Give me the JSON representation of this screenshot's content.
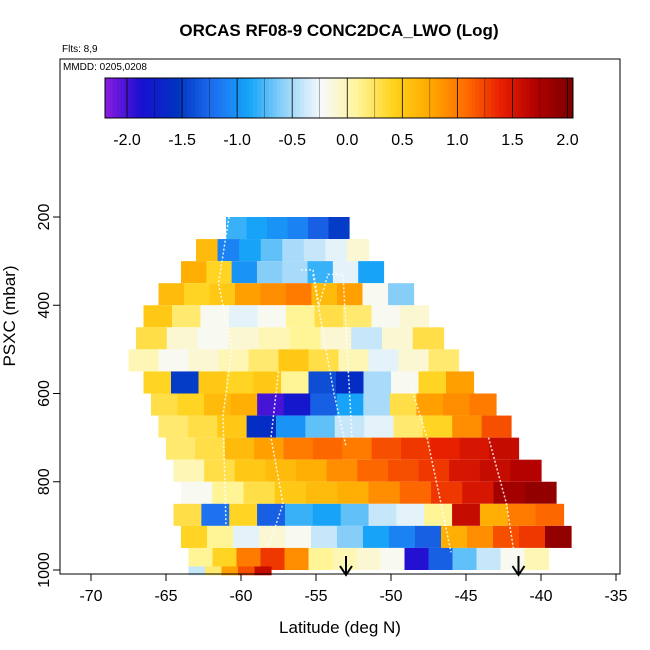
{
  "chart_data": {
    "type": "heatmap",
    "title": "ORCAS RF08-9 CONC2DCA_LWO (Log)",
    "flights_label": "Flts: 8,9",
    "date_label": "MMDD: 0205,0208",
    "xlabel": "Latitude (deg N)",
    "ylabel": "PSXC (mbar)",
    "xlim": [
      -72.5,
      -35
    ],
    "ylim": [
      1010,
      50
    ],
    "x_ticks": [
      -70,
      -65,
      -60,
      -55,
      -50,
      -45,
      -40,
      -35
    ],
    "y_ticks": [
      200,
      400,
      600,
      800,
      1000
    ],
    "colorbar": {
      "ticks": [
        -2.0,
        -1.5,
        -1.0,
        -0.5,
        0.0,
        0.5,
        1.0,
        1.5,
        2.0
      ],
      "tick_labels": [
        "-2.0",
        "-1.5",
        "-1.0",
        "-0.5",
        "0.0",
        "0.5",
        "1.0",
        "1.5",
        "2.0"
      ],
      "range": [
        -2.2,
        2.05
      ],
      "colors": [
        "#8b1ce0",
        "#1a0fd0",
        "#0033c0",
        "#1e6ff0",
        "#16a4f8",
        "#93d3f8",
        "#f7f9fb",
        "#fff59a",
        "#ffd21c",
        "#ffaa00",
        "#ff6e00",
        "#e82000",
        "#b00000",
        "#7a0000"
      ]
    },
    "rows": [
      {
        "p": 225,
        "lat_min": -61.0,
        "lat_max": -52.8,
        "values": [
          -0.8,
          -0.9,
          -1.0,
          -1.1,
          -1.3,
          -1.5
        ]
      },
      {
        "p": 275,
        "lat_min": -63.0,
        "lat_max": -51.5,
        "values": [
          0.6,
          -1.1,
          -0.9,
          -0.7,
          -0.5,
          -0.4,
          -0.3,
          -0.1
        ]
      },
      {
        "p": 325,
        "lat_min": -64.0,
        "lat_max": -50.5,
        "values": [
          0.7,
          0.4,
          -1.0,
          -0.6,
          -0.5,
          -0.8,
          -0.3,
          -0.9
        ]
      },
      {
        "p": 375,
        "lat_min": -65.5,
        "lat_max": -48.5,
        "values": [
          0.6,
          0.4,
          0.5,
          0.8,
          0.9,
          1.0,
          0.6,
          0.8,
          -0.2,
          -0.6
        ]
      },
      {
        "p": 425,
        "lat_min": -66.5,
        "lat_max": -47.5,
        "values": [
          0.5,
          0.2,
          -0.2,
          -0.3,
          -0.2,
          0.1,
          0.3,
          0.2,
          -0.2,
          -0.1
        ]
      },
      {
        "p": 475,
        "lat_min": -67.0,
        "lat_max": -46.5,
        "values": [
          0.3,
          -0.1,
          -0.2,
          -0.1,
          0.0,
          0.1,
          -0.1,
          -0.4,
          -0.1,
          0.3
        ]
      },
      {
        "p": 525,
        "lat_min": -67.5,
        "lat_max": -45.5,
        "values": [
          0.0,
          -0.2,
          -0.1,
          0.0,
          0.2,
          0.5,
          0.3,
          0.0,
          -0.3,
          -0.1,
          0.2
        ]
      },
      {
        "p": 575,
        "lat_min": -66.5,
        "lat_max": -44.5,
        "values": [
          0.4,
          -1.5,
          0.5,
          0.4,
          0.5,
          0.1,
          -1.4,
          -1.6,
          -0.5,
          -0.2,
          0.4,
          0.8
        ]
      },
      {
        "p": 625,
        "lat_min": -66.0,
        "lat_max": -43.0,
        "values": [
          0.3,
          0.4,
          0.6,
          0.7,
          -2.0,
          -1.8,
          -1.3,
          -0.9,
          -0.5,
          0.3,
          0.8,
          0.9,
          1.0
        ]
      },
      {
        "p": 675,
        "lat_min": -65.5,
        "lat_max": -42.0,
        "values": [
          0.2,
          0.3,
          0.5,
          -1.6,
          -1.0,
          -0.7,
          -0.4,
          -0.3,
          0.2,
          0.4,
          0.9,
          1.2
        ]
      },
      {
        "p": 725,
        "lat_min": -65.0,
        "lat_max": -41.5,
        "values": [
          0.2,
          0.3,
          0.6,
          0.8,
          1.0,
          1.1,
          1.0,
          1.2,
          1.3,
          1.4,
          1.5,
          1.6
        ]
      },
      {
        "p": 775,
        "lat_min": -64.5,
        "lat_max": -40.0,
        "values": [
          0.0,
          0.3,
          0.5,
          0.6,
          0.7,
          0.9,
          1.1,
          1.2,
          1.3,
          1.5,
          1.6,
          1.7
        ]
      },
      {
        "p": 825,
        "lat_min": -64.0,
        "lat_max": -39.0,
        "values": [
          -0.2,
          0.1,
          0.3,
          0.5,
          0.6,
          0.7,
          0.9,
          1.1,
          1.3,
          1.5,
          1.8,
          1.9
        ]
      },
      {
        "p": 875,
        "lat_min": -64.5,
        "lat_max": -38.5,
        "values": [
          0.3,
          -1.2,
          0.4,
          -1.3,
          -0.8,
          -0.9,
          -0.7,
          -0.4,
          -0.3,
          0.1,
          1.6,
          0.7,
          1.0,
          1.1
        ]
      },
      {
        "p": 925,
        "lat_min": -64.0,
        "lat_max": -38.0,
        "values": [
          0.4,
          0.1,
          -0.3,
          -0.1,
          -0.2,
          -0.4,
          -0.6,
          -0.9,
          -1.1,
          -1.3,
          0.7,
          0.9,
          1.2,
          1.3,
          1.9
        ]
      },
      {
        "p": 975,
        "lat_min": -63.5,
        "lat_max": -39.5,
        "values": [
          0.1,
          0.4,
          1.0,
          1.3,
          0.9,
          0.1,
          0.0,
          -0.1,
          -0.2,
          -1.9,
          -1.3,
          -0.7,
          -0.4,
          -0.2,
          0.0
        ]
      },
      {
        "p": 1002,
        "lat_min": -63.5,
        "lat_max": -58.0,
        "values": [
          -0.4,
          0.2,
          0.8,
          1.2,
          1.6
        ]
      }
    ],
    "markers": [
      {
        "type": "down-arrow",
        "lat": -53.0
      },
      {
        "type": "down-arrow",
        "lat": -41.5
      }
    ]
  }
}
